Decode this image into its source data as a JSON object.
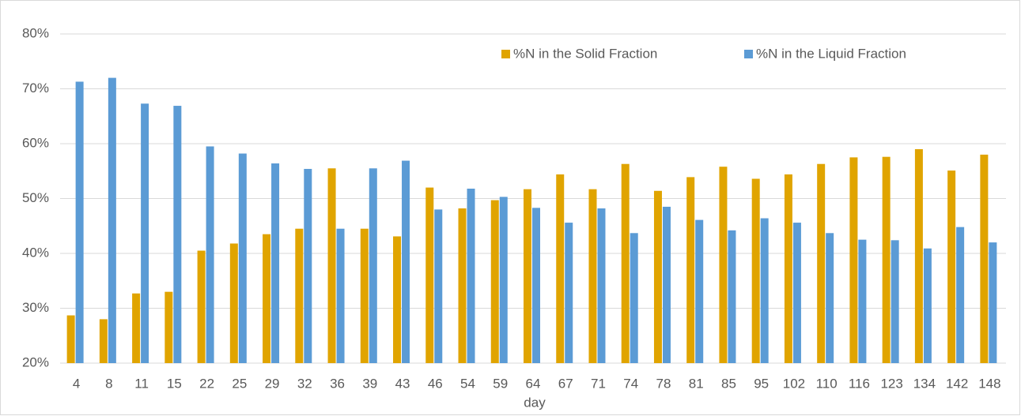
{
  "chart_data": {
    "type": "bar",
    "x_label": "day",
    "categories": [
      "4",
      "8",
      "11",
      "15",
      "22",
      "25",
      "29",
      "32",
      "36",
      "39",
      "43",
      "46",
      "54",
      "59",
      "64",
      "67",
      "71",
      "74",
      "78",
      "81",
      "85",
      "95",
      "102",
      "110",
      "116",
      "123",
      "134",
      "142",
      "148"
    ],
    "series": [
      {
        "name": "%N in the Solid Fraction",
        "color": "#e0a400",
        "values": [
          28.7,
          28,
          32.7,
          33,
          40.5,
          41.8,
          43.5,
          44.5,
          55.5,
          44.5,
          43.1,
          52,
          48.2,
          49.7,
          51.7,
          54.4,
          51.7,
          56.3,
          51.4,
          53.9,
          55.8,
          53.6,
          54.4,
          56.3,
          57.5,
          57.6,
          59,
          55.1,
          58
        ]
      },
      {
        "name": "%N in the Liquid Fraction",
        "color": "#5b9bd5",
        "values": [
          71.3,
          72,
          67.3,
          66.9,
          59.5,
          58.2,
          56.4,
          55.4,
          44.5,
          55.5,
          56.9,
          48,
          51.8,
          50.3,
          48.3,
          45.6,
          48.2,
          43.7,
          48.5,
          46.1,
          44.2,
          46.4,
          45.6,
          43.7,
          42.5,
          42.4,
          40.9,
          44.8,
          42
        ]
      }
    ],
    "ylim": [
      20,
      80
    ],
    "yticks": [
      {
        "value": 20,
        "label": "20%"
      },
      {
        "value": 30,
        "label": "30%"
      },
      {
        "value": 40,
        "label": "40%"
      },
      {
        "value": 50,
        "label": "50%"
      },
      {
        "value": 60,
        "label": "60%"
      },
      {
        "value": 70,
        "label": "70%"
      },
      {
        "value": 80,
        "label": "80%"
      }
    ],
    "grid": true,
    "legend": "top-right"
  }
}
